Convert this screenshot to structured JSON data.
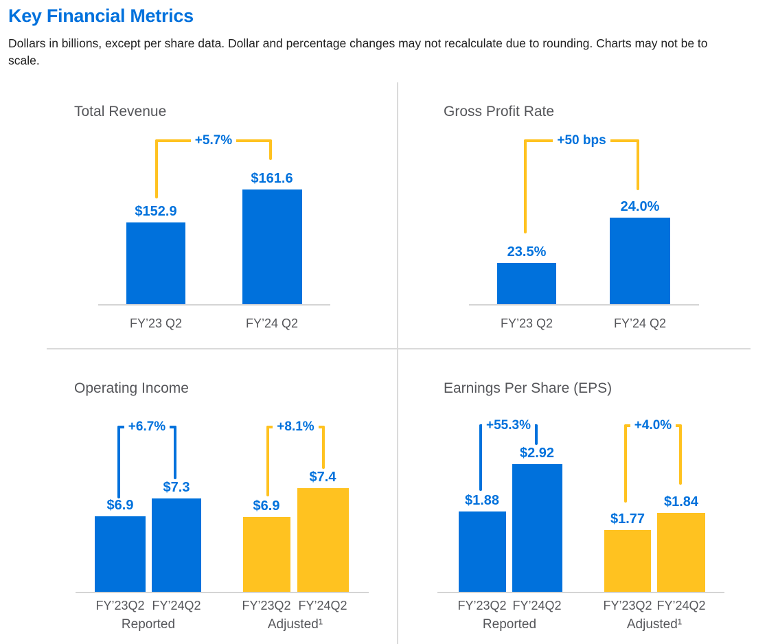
{
  "header": {
    "title": "Key Financial Metrics",
    "subtitle": "Dollars in billions, except per share data.  Dollar and percentage changes may not recalculate due to rounding. Charts may not be to scale."
  },
  "colors": {
    "brand_blue": "#0071dc",
    "brand_yellow": "#ffc220",
    "value_label_blue": "#0071dc",
    "text_dark": "#1f1f1f",
    "text_gray": "#55565a",
    "divider_gray": "#dadada"
  },
  "chart_data": [
    {
      "id": "total-revenue",
      "type": "bar",
      "title": "Total Revenue",
      "groups": [
        {
          "label": "",
          "bar_color": "#0071dc",
          "bracket_color": "#ffc220",
          "categories": [
            "FY’23 Q2",
            "FY’24 Q2"
          ],
          "values": [
            152.9,
            161.6
          ],
          "value_labels": [
            "$152.9",
            "$161.6"
          ],
          "change_label": "+5.7%"
        }
      ]
    },
    {
      "id": "gross-profit-rate",
      "type": "bar",
      "title": "Gross Profit Rate",
      "groups": [
        {
          "label": "",
          "bar_color": "#0071dc",
          "bracket_color": "#ffc220",
          "categories": [
            "FY’23 Q2",
            "FY’24 Q2"
          ],
          "values": [
            23.5,
            24.0
          ],
          "value_labels": [
            "23.5%",
            "24.0%"
          ],
          "change_label": "+50 bps"
        }
      ]
    },
    {
      "id": "operating-income",
      "type": "bar",
      "title": "Operating Income",
      "groups": [
        {
          "label": "Reported",
          "bar_color": "#0071dc",
          "bracket_color": "#0071dc",
          "categories": [
            "FY’23Q2",
            "FY’24Q2"
          ],
          "values": [
            6.9,
            7.3
          ],
          "value_labels": [
            "$6.9",
            "$7.3"
          ],
          "change_label": "+6.7%"
        },
        {
          "label": "Adjusted¹",
          "bar_color": "#ffc220",
          "bracket_color": "#ffc220",
          "categories": [
            "FY’23Q2",
            "FY’24Q2"
          ],
          "values": [
            6.9,
            7.4
          ],
          "value_labels": [
            "$6.9",
            "$7.4"
          ],
          "change_label": "+8.1%"
        }
      ]
    },
    {
      "id": "eps",
      "type": "bar",
      "title": "Earnings Per Share (EPS)",
      "groups": [
        {
          "label": "Reported",
          "bar_color": "#0071dc",
          "bracket_color": "#0071dc",
          "categories": [
            "FY’23Q2",
            "FY’24Q2"
          ],
          "values": [
            1.88,
            2.92
          ],
          "value_labels": [
            "$1.88",
            "$2.92"
          ],
          "change_label": "+55.3%"
        },
        {
          "label": "Adjusted¹",
          "bar_color": "#ffc220",
          "bracket_color": "#ffc220",
          "categories": [
            "FY’23Q2",
            "FY’24Q2"
          ],
          "values": [
            1.77,
            1.84
          ],
          "value_labels": [
            "$1.77",
            "$1.84"
          ],
          "change_label": "+4.0%"
        }
      ]
    }
  ]
}
